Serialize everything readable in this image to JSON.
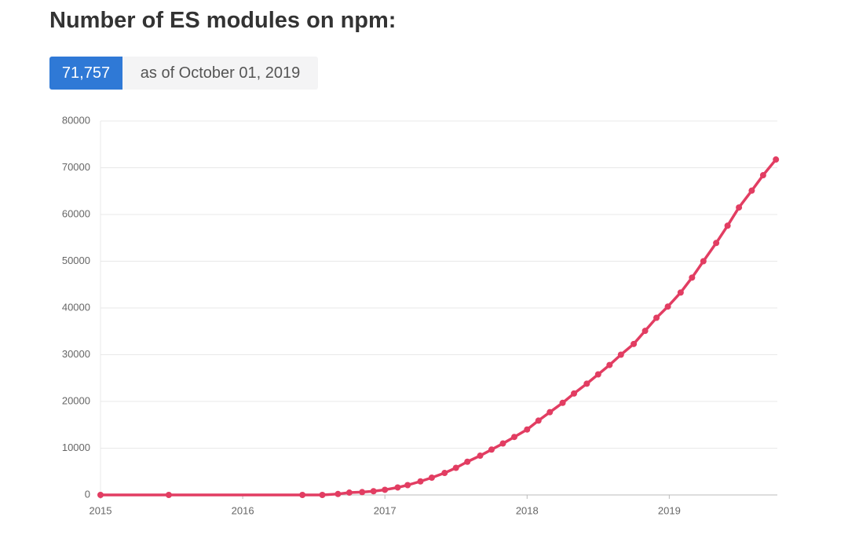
{
  "chart_data": {
    "type": "line",
    "title": "Number of ES modules on npm:",
    "badge": "71,757",
    "as_of": "as of October 01, 2019",
    "x": [
      2015,
      2015.48,
      2016.42,
      2016.56,
      2016.67,
      2016.75,
      2016.84,
      2016.92,
      2017,
      2017.09,
      2017.16,
      2017.25,
      2017.33,
      2017.42,
      2017.5,
      2017.58,
      2017.67,
      2017.75,
      2017.83,
      2017.91,
      2018,
      2018.08,
      2018.16,
      2018.25,
      2018.33,
      2018.42,
      2018.5,
      2018.58,
      2018.66,
      2018.75,
      2018.83,
      2018.91,
      2018.99,
      2019.08,
      2019.16,
      2019.24,
      2019.33,
      2019.41,
      2019.49,
      2019.58,
      2019.66,
      2019.75
    ],
    "series": [
      {
        "color": "#e23d62",
        "values": [
          0,
          0,
          0,
          0,
          200,
          500,
          600,
          800,
          1100,
          1600,
          2100,
          2900,
          3700,
          4700,
          5800,
          7100,
          8400,
          9700,
          11000,
          12400,
          14000,
          15900,
          17700,
          19700,
          21700,
          23800,
          25800,
          27800,
          30000,
          32300,
          35100,
          37900,
          40300,
          43300,
          46500,
          50000,
          53900,
          57600,
          61500,
          65100,
          68400,
          71757
        ]
      }
    ],
    "xlim": [
      2015,
      2019.76
    ],
    "xticks": [
      2015,
      2016,
      2017,
      2018,
      2019
    ],
    "ylim": [
      0,
      80000
    ],
    "yticks": [
      0,
      10000,
      20000,
      30000,
      40000,
      50000,
      60000,
      70000,
      80000
    ],
    "grid": true
  }
}
